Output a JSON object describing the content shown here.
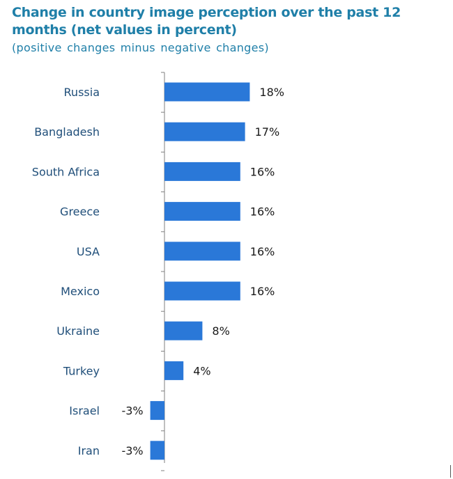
{
  "chart_data": {
    "type": "bar",
    "orientation": "horizontal",
    "title": "Change in country image perception over the past 12 months (net values in percent)",
    "subtitle": "(positive changes minus negative changes)",
    "categories": [
      "Russia",
      "Bangladesh",
      "South Africa",
      "Greece",
      "USA",
      "Mexico",
      "Ukraine",
      "Turkey",
      "Israel",
      "Iran"
    ],
    "values": [
      18,
      17,
      16,
      16,
      16,
      16,
      8,
      4,
      -3,
      -3
    ],
    "value_labels": [
      "18%",
      "17%",
      "16%",
      "16%",
      "16%",
      "16%",
      "8%",
      "4%",
      "-3%",
      "-3%"
    ],
    "value_unit": "%",
    "xlabel": "",
    "ylabel": "",
    "xlim": [
      -3,
      18
    ],
    "grid": false,
    "legend": "none",
    "colors": {
      "bar": "#2a78d8",
      "title": "#1f7fa8",
      "category_label": "#1f4e79",
      "value_label": "#1a1a1a",
      "axis": "#7f7f7f"
    }
  }
}
